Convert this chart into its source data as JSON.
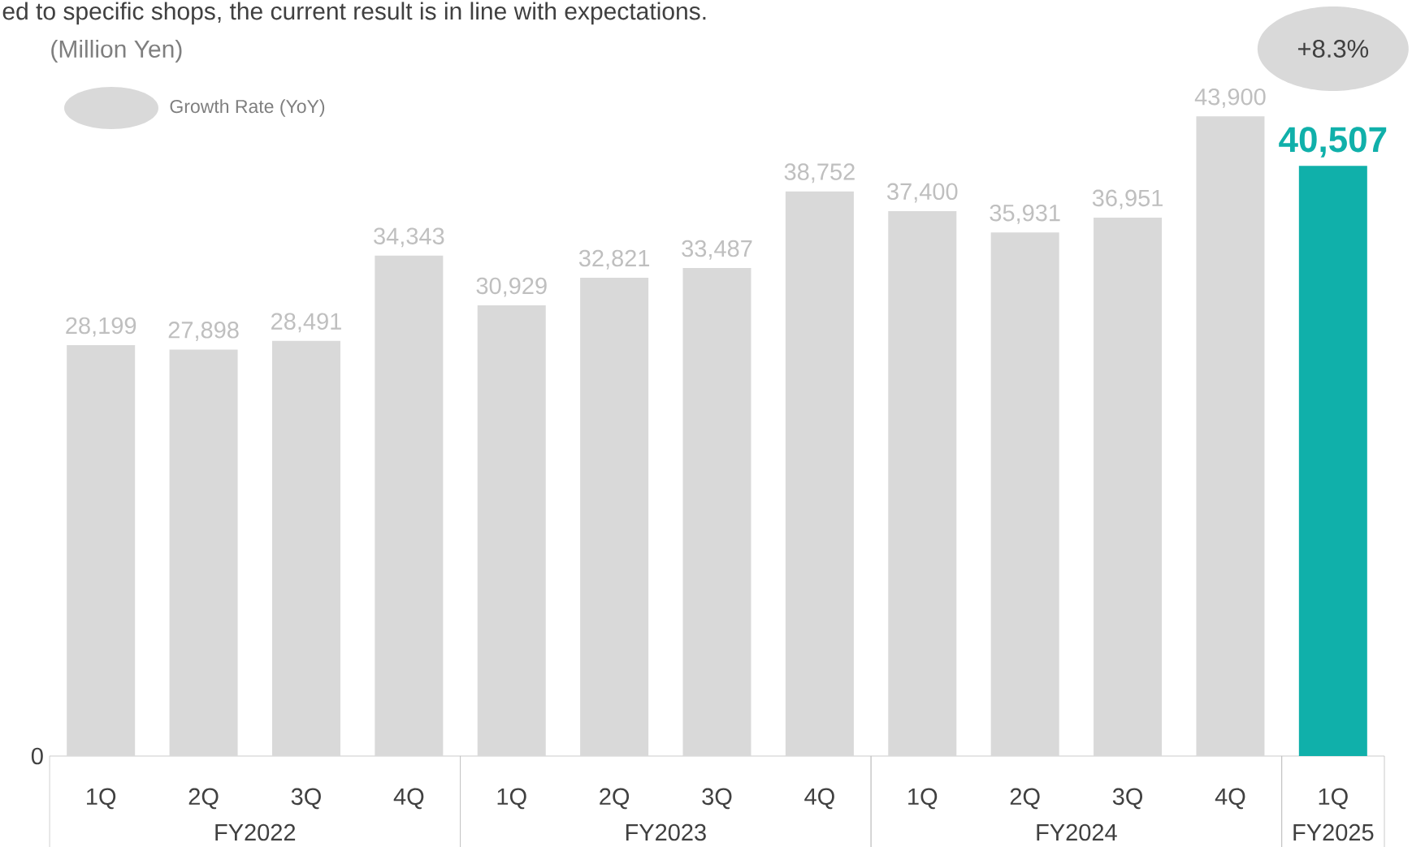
{
  "chart_data": {
    "type": "bar",
    "ylabel": "(Million Yen)",
    "categories": [
      "1Q",
      "2Q",
      "3Q",
      "4Q",
      "1Q",
      "2Q",
      "3Q",
      "4Q",
      "1Q",
      "2Q",
      "3Q",
      "4Q",
      "1Q"
    ],
    "values": [
      28199,
      27898,
      28491,
      34343,
      30929,
      32821,
      33487,
      38752,
      37400,
      35931,
      36951,
      43900,
      40507
    ],
    "value_labels": [
      "28,199",
      "27,898",
      "28,491",
      "34,343",
      "30,929",
      "32,821",
      "33,487",
      "38,752",
      "37,400",
      "35,931",
      "36,951",
      "43,900",
      "40,507"
    ],
    "colors": [
      "#d9d9d9",
      "#d9d9d9",
      "#d9d9d9",
      "#d9d9d9",
      "#d9d9d9",
      "#d9d9d9",
      "#d9d9d9",
      "#d9d9d9",
      "#d9d9d9",
      "#d9d9d9",
      "#d9d9d9",
      "#d9d9d9",
      "#10b0aa"
    ],
    "annotations": [
      "ed to specific shops, the current result is in line with expectations.",
      "Growth Rate (YoY)",
      "+8.3%",
      "0",
      "FY2022",
      "FY2023",
      "FY2024",
      "FY2025"
    ]
  }
}
